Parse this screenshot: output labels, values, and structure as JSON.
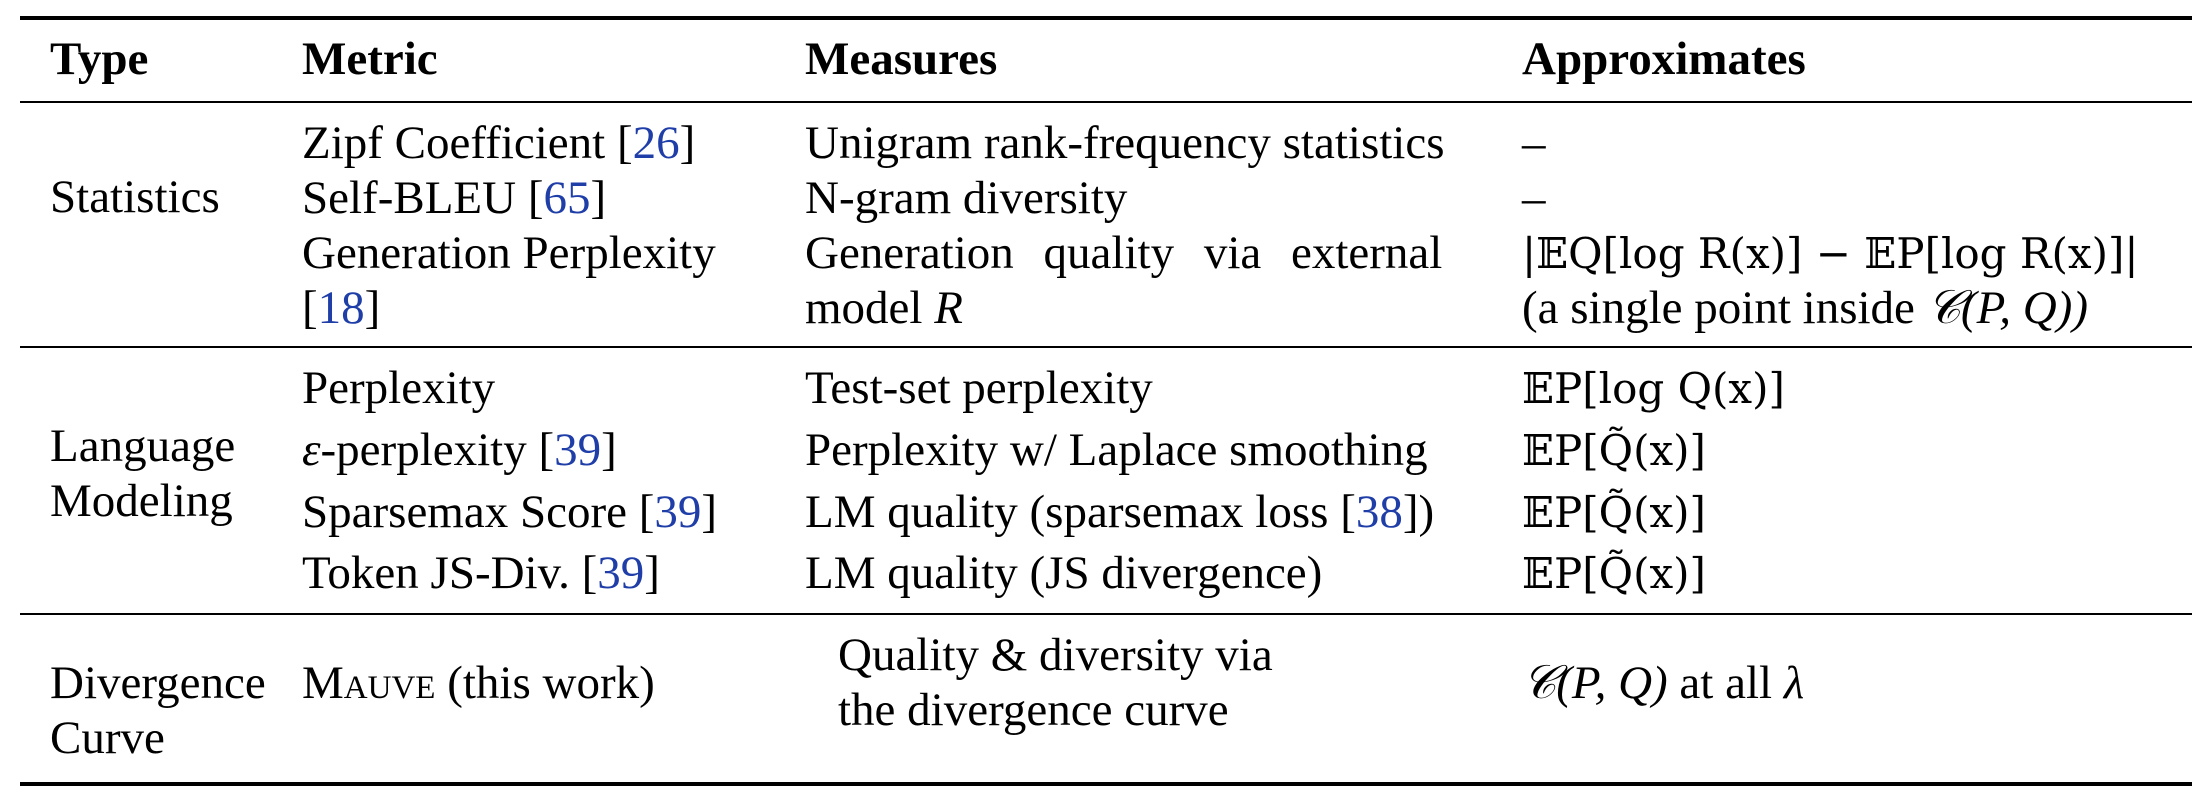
{
  "headers": {
    "type": "Type",
    "metric": "Metric",
    "measures": "Measures",
    "approximates": "Approximates"
  },
  "groups": {
    "statistics": {
      "type": "Statistics",
      "rows": [
        {
          "metric": "Zipf Coefficient",
          "cite": "26",
          "measures": "Unigram rank-frequency statistics",
          "approximates": "–"
        },
        {
          "metric": "Self-BLEU",
          "cite": "65",
          "measures": "N-gram diversity",
          "approximates": "–"
        },
        {
          "metric_line1": "Generation Perplexity",
          "cite": "18",
          "measures_line1": "Generation quality via external",
          "measures_line2_text": "model",
          "measures_line2_math": "R",
          "approx_line1": "|𝔼Q[log R(x)] − 𝔼P[log R(x)]|",
          "approx_line2_prefix": "(a single point inside",
          "approx_line2_math": "𝒞(P, Q))"
        }
      ]
    },
    "language_modeling": {
      "type_line1": "Language",
      "type_line2": "Modeling",
      "rows": [
        {
          "metric": "Perplexity",
          "measures": "Test-set perplexity",
          "approximates": "𝔼P[log Q(x)]"
        },
        {
          "metric_prefix": "ε",
          "metric": "-perplexity",
          "cite": "39",
          "measures": "Perplexity w/ Laplace smoothing",
          "approximates": "𝔼P[Q̃(x)]"
        },
        {
          "metric": "Sparsemax Score",
          "cite": "39",
          "measures_prefix": "LM quality (sparsemax loss",
          "measures_cite": "38",
          "measures_suffix": ")",
          "approximates": "𝔼P[Q̃(x)]"
        },
        {
          "metric": "Token JS-Div.",
          "cite": "39",
          "measures": "LM quality (JS divergence)",
          "approximates": "𝔼P[Q̃(x)]"
        }
      ]
    },
    "divergence_curve": {
      "type_line1": "Divergence",
      "type_line2": "Curve",
      "rows": [
        {
          "metric_sc": "Mauve",
          "metric_suffix": " (this work)",
          "measures_line1": "Quality & diversity via",
          "measures_line2": "the divergence curve",
          "approx_math": "𝒞(P, Q)",
          "approx_text": " at all ",
          "approx_lambda": "λ"
        }
      ]
    }
  },
  "colors": {
    "citation": "#1f3ea8",
    "rule": "#000000"
  }
}
